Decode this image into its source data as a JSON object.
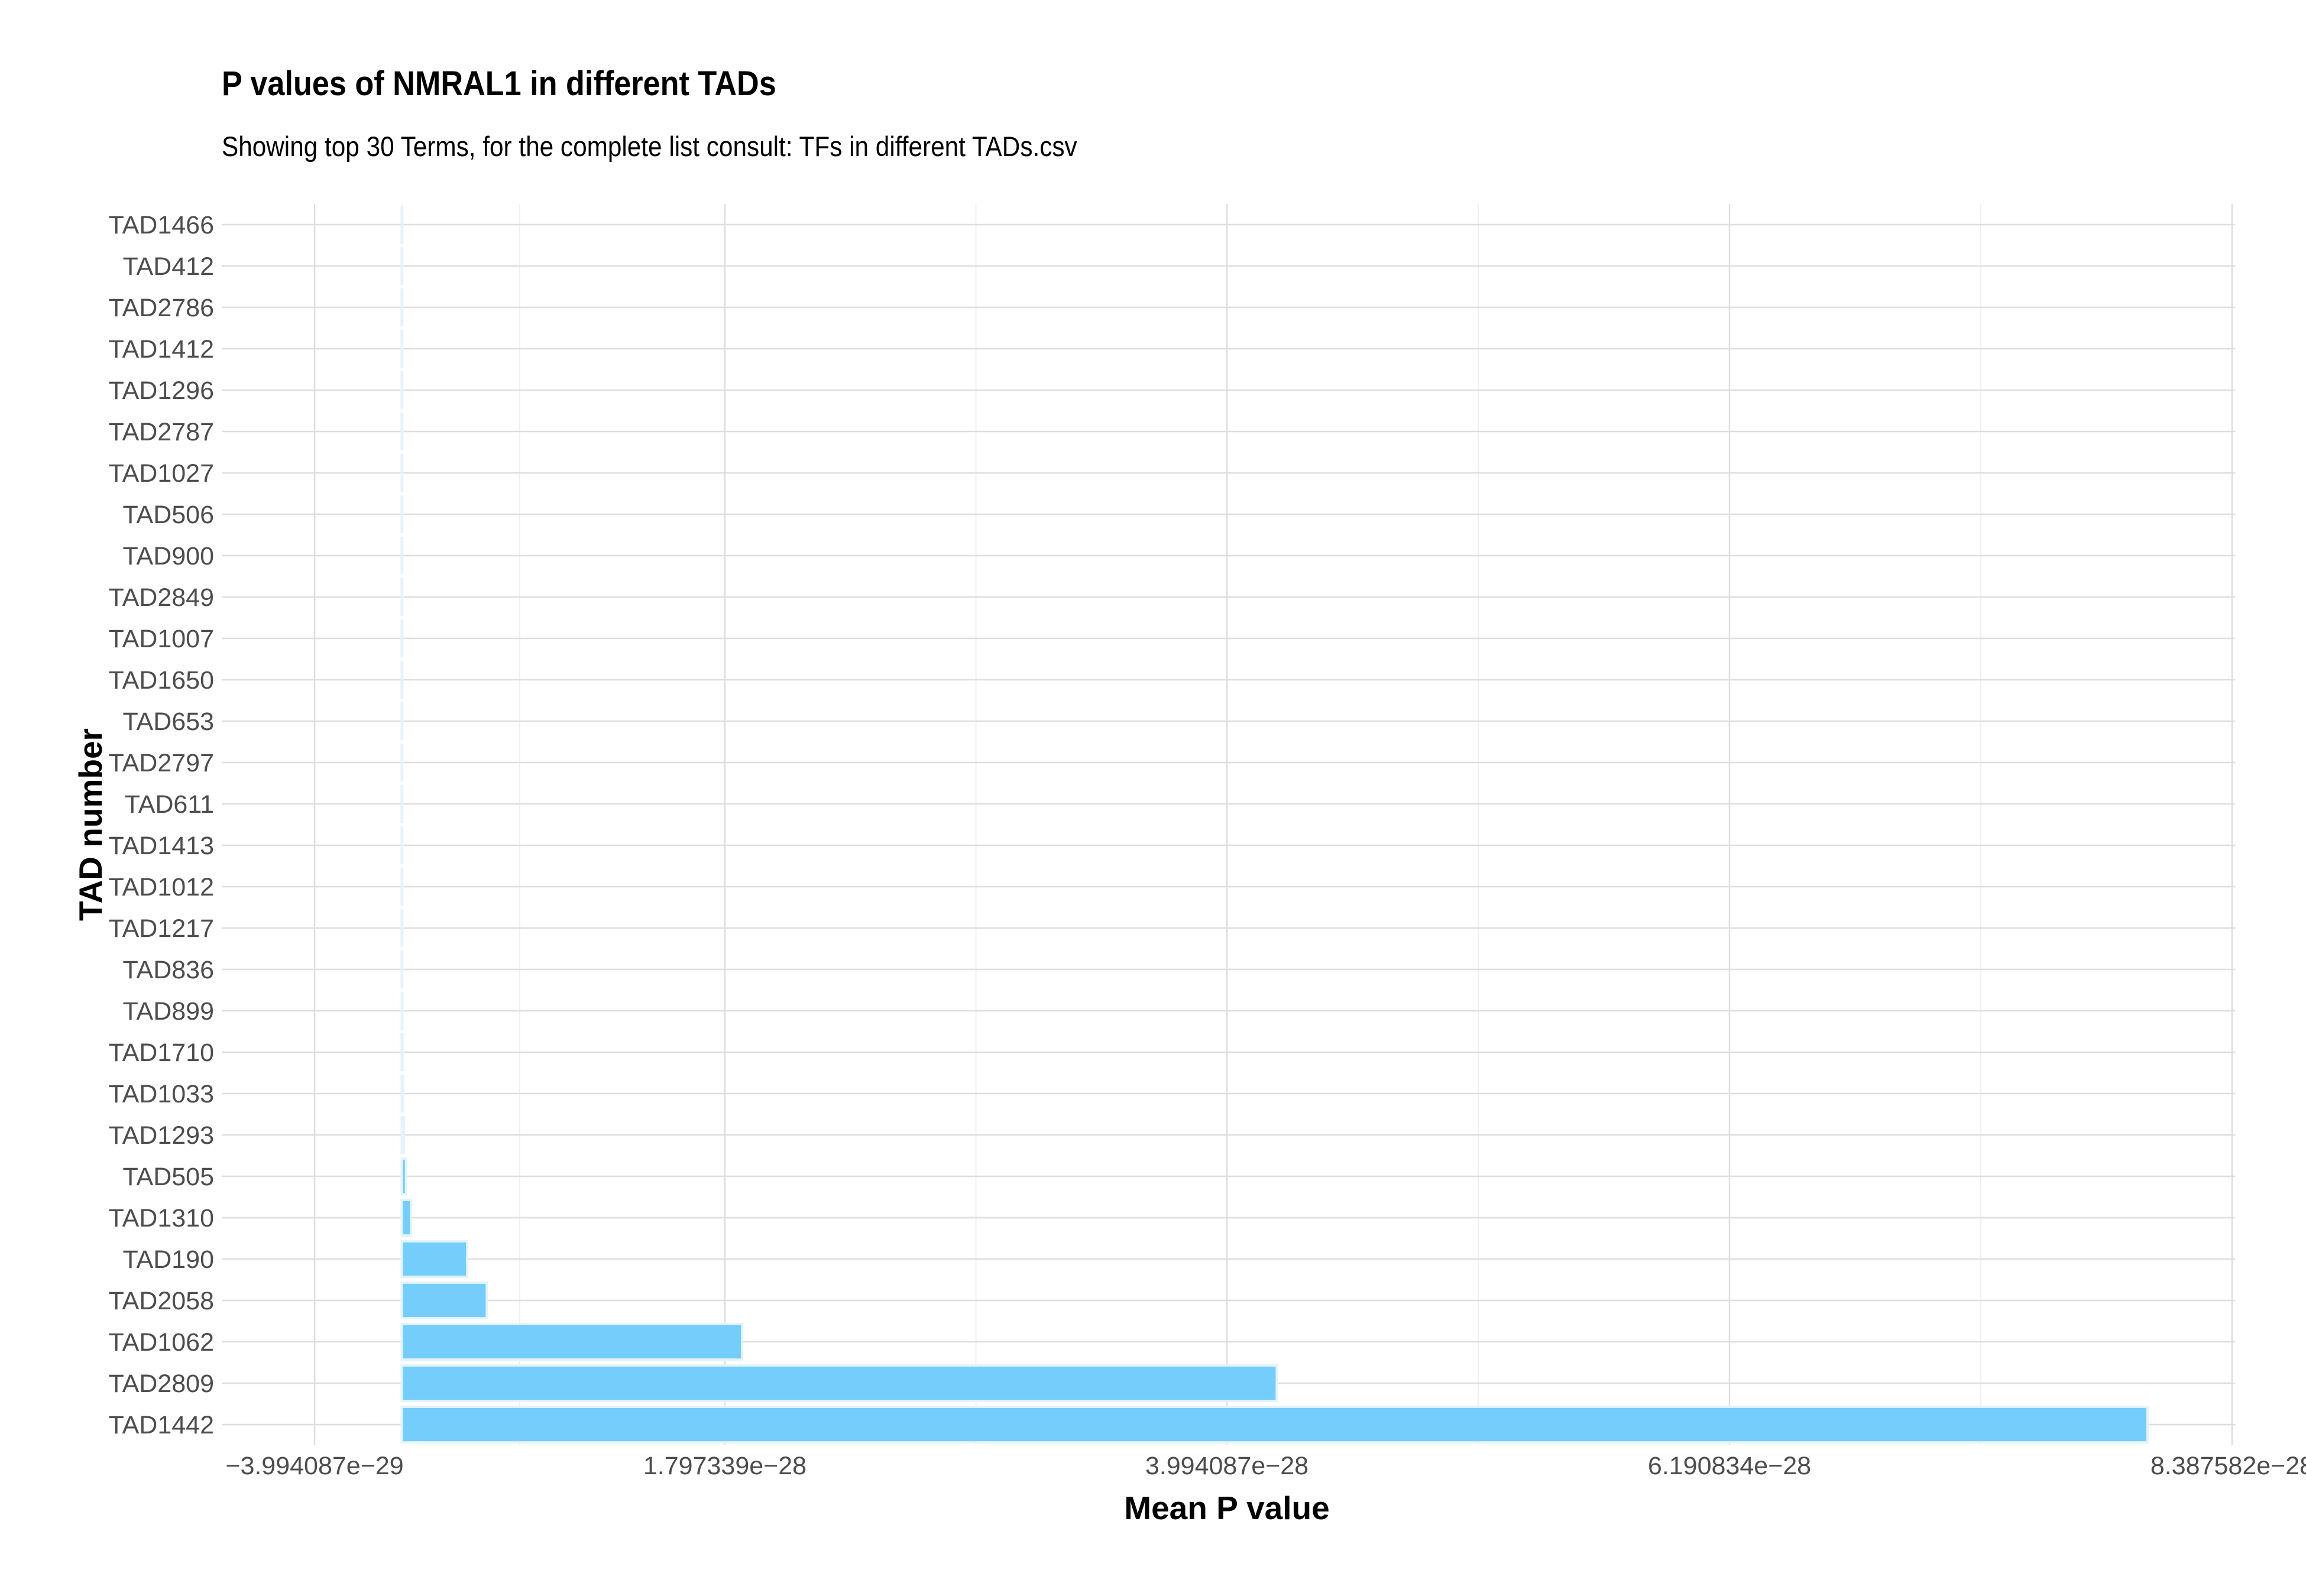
{
  "chart_data": {
    "type": "bar",
    "orientation": "horizontal",
    "title": "P values of NMRAL1 in different TADs",
    "subtitle": "Showing top 30 Terms, for the complete list consult: TFs in different TADs.csv",
    "xlabel": "Mean P value",
    "ylabel": "TAD number",
    "bar_color": "#74cdfa",
    "bar_edge_color": "#e4f3fb",
    "grid": true,
    "xlim": [
      -3.994087e-29,
      8.387582e-28
    ],
    "xticks": [
      -3.994087e-29,
      1.797339e-28,
      3.994087e-28,
      6.190834e-28,
      8.387582e-28
    ],
    "xtick_labels": [
      "−3.994087e−29",
      "1.797339e−28",
      "3.994087e−28",
      "6.190834e−28",
      "8.387582e−28"
    ],
    "categories": [
      "TAD1466",
      "TAD412",
      "TAD2786",
      "TAD1412",
      "TAD1296",
      "TAD2787",
      "TAD1027",
      "TAD506",
      "TAD900",
      "TAD2849",
      "TAD1007",
      "TAD1650",
      "TAD653",
      "TAD2797",
      "TAD611",
      "TAD1413",
      "TAD1012",
      "TAD1217",
      "TAD836",
      "TAD899",
      "TAD1710",
      "TAD1033",
      "TAD1293",
      "TAD505",
      "TAD1310",
      "TAD190",
      "TAD2058",
      "TAD1062",
      "TAD2809",
      "TAD1442"
    ],
    "values": [
      1e-34,
      2e-34,
      3e-34,
      5e-34,
      8e-34,
      1.2e-33,
      2e-33,
      3e-33,
      5e-33,
      8e-33,
      1.2e-32,
      1.8e-32,
      2.6e-32,
      3.8e-32,
      5.5e-32,
      8e-32,
      1.1e-31,
      1.5e-31,
      2e-31,
      2.8e-31,
      4e-31,
      6e-31,
      1e-30,
      2e-30,
      4.3e-30,
      3e-29,
      3.9e-29,
      1.56e-28,
      4.01e-28,
      8e-28
    ]
  }
}
